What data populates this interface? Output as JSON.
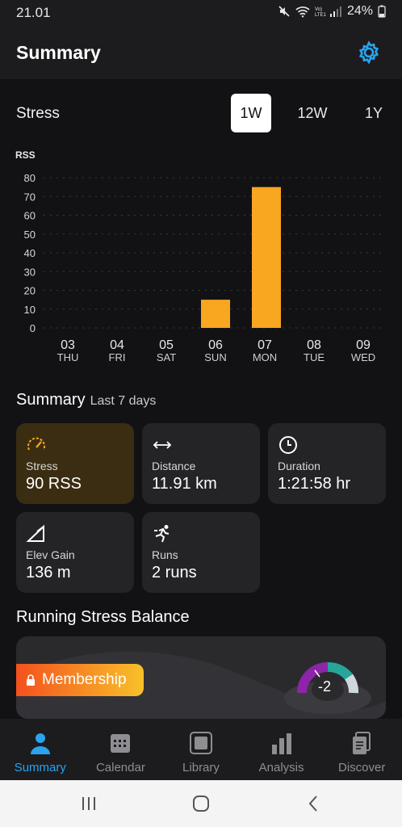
{
  "status_bar": {
    "time": "21.01",
    "battery": "24%"
  },
  "header": {
    "title": "Summary",
    "settings_icon": "gear-icon"
  },
  "stress": {
    "title": "Stress",
    "tabs": [
      "1W",
      "12W",
      "1Y"
    ],
    "active_tab": "1W"
  },
  "chart_data": {
    "type": "bar",
    "ylabel": "RSS",
    "ylim": [
      0,
      80
    ],
    "yticks": [
      "80",
      "70",
      "60",
      "50",
      "40",
      "30",
      "20",
      "10",
      "0"
    ],
    "categories": [
      "03",
      "04",
      "05",
      "06",
      "07",
      "08",
      "09"
    ],
    "day_labels": [
      "THU",
      "FRI",
      "SAT",
      "SUN",
      "MON",
      "TUE",
      "WED"
    ],
    "values": [
      0,
      0,
      0,
      15,
      75,
      0,
      0
    ],
    "bar_color": "#f9a620",
    "grid": true
  },
  "summary": {
    "title": "Summary",
    "subtitle": "Last 7 days",
    "cards": [
      {
        "label": "Stress",
        "value": "90 RSS",
        "icon": "speedometer-icon"
      },
      {
        "label": "Distance",
        "value": "11.91 km",
        "icon": "arrows-horizontal-icon"
      },
      {
        "label": "Duration",
        "value": "1:21:58 hr",
        "icon": "clock-icon"
      },
      {
        "label": "Elev Gain",
        "value": "136 m",
        "icon": "slope-icon"
      },
      {
        "label": "Runs",
        "value": "2 runs",
        "icon": "runner-icon"
      }
    ]
  },
  "rsb": {
    "title": "Running Stress Balance",
    "membership_label": "Membership",
    "gauge_value": "-2"
  },
  "bottom_nav": [
    {
      "label": "Summary",
      "icon": "person-icon",
      "active": true
    },
    {
      "label": "Calendar",
      "icon": "calendar-icon",
      "active": false
    },
    {
      "label": "Library",
      "icon": "library-icon",
      "active": false
    },
    {
      "label": "Analysis",
      "icon": "bar-chart-icon",
      "active": false
    },
    {
      "label": "Discover",
      "icon": "document-icon",
      "active": false
    }
  ],
  "colors": {
    "accent": "#2aa3f0",
    "bar": "#f9a620",
    "stress_card": "#3a2d12"
  }
}
